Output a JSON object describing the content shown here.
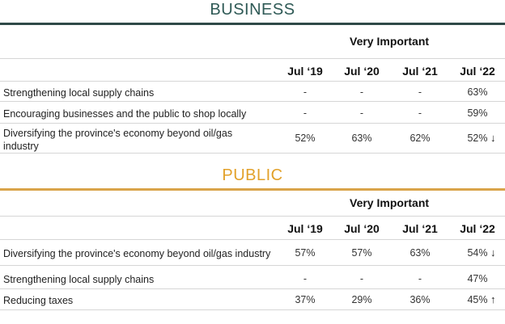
{
  "business": {
    "title": "BUSINESS",
    "title_color": "#2f5a56",
    "rule_color": "#2f4a48",
    "group_header": "Very Important",
    "columns": [
      "Jul ‘19",
      "Jul ‘20",
      "Jul ‘21",
      "Jul ‘22"
    ],
    "rows": [
      {
        "label": "Strengthening local supply chains",
        "values": [
          "-",
          "-",
          "-",
          "63%"
        ],
        "trend": ""
      },
      {
        "label": "Encouraging businesses and the public to shop locally",
        "values": [
          "-",
          "-",
          "-",
          "59%"
        ],
        "trend": ""
      },
      {
        "label": "Diversifying the province's economy beyond oil/gas industry",
        "values": [
          "52%",
          "63%",
          "62%",
          "52%"
        ],
        "trend": "↓"
      }
    ]
  },
  "public": {
    "title": "PUBLIC",
    "title_color": "#e2a12a",
    "rule_color": "#d9a44a",
    "group_header": "Very Important",
    "columns": [
      "Jul ‘19",
      "Jul ‘20",
      "Jul ‘21",
      "Jul ‘22"
    ],
    "rows": [
      {
        "label": "Diversifying the province's economy beyond oil/gas industry",
        "values": [
          "57%",
          "57%",
          "63%",
          "54%"
        ],
        "trend": "↓"
      },
      {
        "label": "Strengthening local supply chains",
        "values": [
          "-",
          "-",
          "-",
          "47%"
        ],
        "trend": ""
      },
      {
        "label": "Reducing taxes",
        "values": [
          "37%",
          "29%",
          "36%",
          "45%"
        ],
        "trend": "↑"
      }
    ]
  }
}
